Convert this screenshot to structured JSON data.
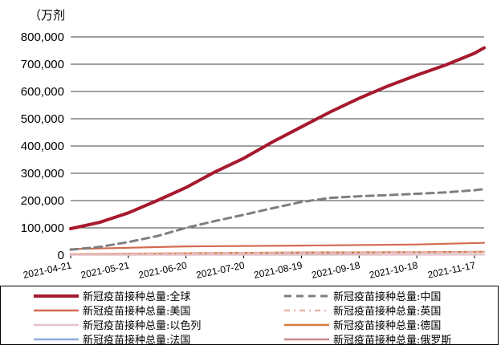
{
  "chart_data": {
    "type": "line",
    "unit_label": "（万剂",
    "x_ticks": [
      "2021-04-21",
      "2021-05-21",
      "2021-06-20",
      "2021-07-20",
      "2021-08-19",
      "2021-09-18",
      "2021-10-18",
      "2021-11-17"
    ],
    "y_ticks": [
      "0",
      "100,000",
      "200,000",
      "300,000",
      "400,000",
      "500,000",
      "600,000",
      "700,000",
      "800,000"
    ],
    "ylim": [
      0,
      800000
    ],
    "x_range": [
      "2021-04-21",
      "2021-11-22"
    ],
    "grid": true,
    "legend_position": "bottom",
    "series": [
      {
        "name": "新冠疫苗接种总量:全球",
        "color": "#a6192e",
        "style": "solid",
        "x": [
          "2021-04-21",
          "2021-05-06",
          "2021-05-21",
          "2021-06-05",
          "2021-06-20",
          "2021-07-05",
          "2021-07-20",
          "2021-08-04",
          "2021-08-19",
          "2021-09-03",
          "2021-09-18",
          "2021-10-03",
          "2021-10-18",
          "2021-11-02",
          "2021-11-17",
          "2021-11-22"
        ],
        "values": [
          97000,
          120000,
          155000,
          200000,
          248000,
          305000,
          355000,
          415000,
          470000,
          525000,
          575000,
          620000,
          660000,
          697000,
          740000,
          760000
        ]
      },
      {
        "name": "新冠疫苗接种总量:中国",
        "color": "#7f7f7f",
        "style": "dashed",
        "x": [
          "2021-04-21",
          "2021-05-06",
          "2021-05-21",
          "2021-06-05",
          "2021-06-20",
          "2021-07-05",
          "2021-07-20",
          "2021-08-04",
          "2021-08-19",
          "2021-09-03",
          "2021-09-18",
          "2021-10-03",
          "2021-10-18",
          "2021-11-02",
          "2021-11-17",
          "2021-11-22"
        ],
        "values": [
          20000,
          30000,
          48000,
          70000,
          100000,
          125000,
          148000,
          172000,
          195000,
          210000,
          216000,
          220000,
          225000,
          230000,
          238000,
          242000
        ]
      },
      {
        "name": "新冠疫苗接种总量:美国",
        "color": "#d36a4f",
        "style": "solid",
        "x": [
          "2021-04-21",
          "2021-06-20",
          "2021-08-19",
          "2021-10-18",
          "2021-11-22"
        ],
        "values": [
          22000,
          32000,
          35000,
          39000,
          45000
        ]
      },
      {
        "name": "新冠疫苗接种总量:英国",
        "color": "#e8b4b0",
        "style": "dashdot",
        "x": [
          "2021-04-21",
          "2021-06-20",
          "2021-08-19",
          "2021-10-18",
          "2021-11-22"
        ],
        "values": [
          4500,
          7500,
          8800,
          9500,
          11000
        ]
      },
      {
        "name": "新冠疫苗接种总量:以色列",
        "color": "#e3c3c8",
        "style": "solid",
        "x": [
          "2021-04-21",
          "2021-06-20",
          "2021-08-19",
          "2021-10-18",
          "2021-11-22"
        ],
        "values": [
          1000,
          1050,
          1200,
          1600,
          1650
        ]
      },
      {
        "name": "新冠疫苗接种总量:德国",
        "color": "#d97a3a",
        "style": "solid",
        "x": [
          "2021-04-21",
          "2021-06-20",
          "2021-08-19",
          "2021-10-18",
          "2021-11-22"
        ],
        "values": [
          2500,
          7000,
          10000,
          11000,
          12000
        ]
      },
      {
        "name": "新冠疫苗接种总量:法国",
        "color": "#8eaadb",
        "style": "solid",
        "x": [
          "2021-04-21",
          "2021-06-20",
          "2021-08-19",
          "2021-10-18",
          "2021-11-22"
        ],
        "values": [
          2000,
          5000,
          8000,
          9500,
          10500
        ]
      },
      {
        "name": "新冠疫苗接种总量:俄罗斯",
        "color": "#c98c8c",
        "style": "solid",
        "x": [
          "2021-04-21",
          "2021-06-20",
          "2021-08-19",
          "2021-10-18",
          "2021-11-22"
        ],
        "values": [
          2000,
          3500,
          6000,
          10000,
          12000
        ]
      }
    ]
  }
}
